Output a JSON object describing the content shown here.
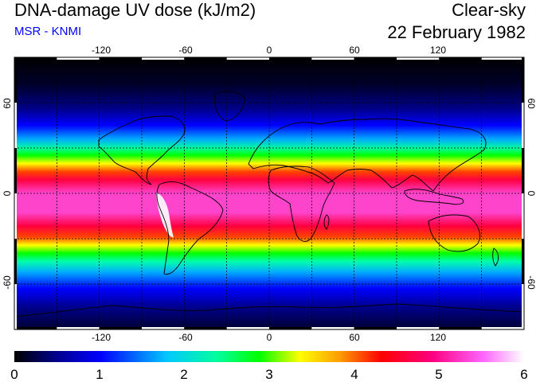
{
  "header": {
    "title": "DNA-damage UV dose (kJ/m2)",
    "subtitle": "MSR - KNMI",
    "condition": "Clear-sky",
    "date": "22 February 1982"
  },
  "colors": {
    "subtitle": "#0000ff",
    "scale": [
      "#000000",
      "#00008a",
      "#0000ff",
      "#00c8ff",
      "#00ff9a",
      "#00ff00",
      "#ffff00",
      "#ff9a00",
      "#ff0000",
      "#ff0080",
      "#ff66ff",
      "#ffffff"
    ],
    "coastline": "#000000",
    "gridline": "#000000"
  },
  "map": {
    "projection": "equirectangular",
    "lon_range": [
      -180,
      180
    ],
    "lat_range": [
      -90,
      90
    ],
    "lon_ticks": [
      "-120",
      "-60",
      "0",
      "60",
      "120"
    ],
    "lat_ticks": [
      "60",
      "0",
      "-60"
    ],
    "colorbar": {
      "min": 0,
      "max": 6,
      "labels": [
        "0",
        "1",
        "2",
        "3",
        "4",
        "5",
        "6"
      ]
    }
  }
}
